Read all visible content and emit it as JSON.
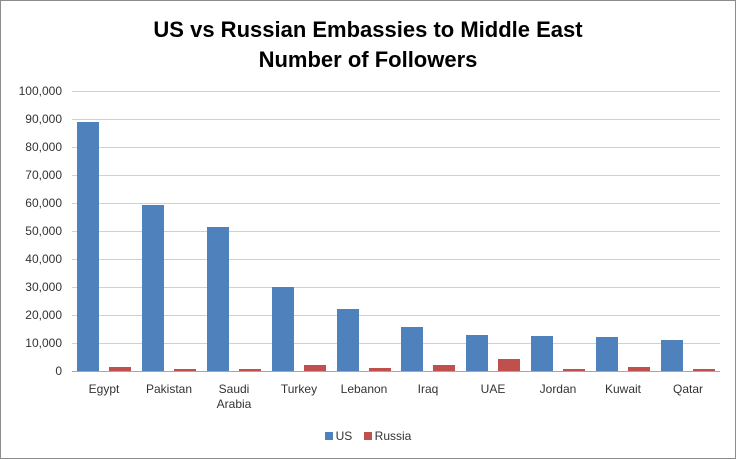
{
  "chart_data": {
    "type": "bar",
    "title": "US vs Russian Embassies to Middle East",
    "subtitle": "Number of Followers",
    "xlabel": "",
    "ylabel": "",
    "ylim": [
      0,
      100000
    ],
    "yticks": [
      "0",
      "10,000",
      "20,000",
      "30,000",
      "40,000",
      "50,000",
      "60,000",
      "70,000",
      "80,000",
      "90,000",
      "100,000"
    ],
    "grid": true,
    "legend_position": "bottom",
    "categories": [
      "Egypt",
      "Pakistan",
      "Saudi Arabia",
      "Turkey",
      "Lebanon",
      "Iraq",
      "UAE",
      "Jordan",
      "Kuwait",
      "Qatar"
    ],
    "category_lines": [
      [
        "Egypt"
      ],
      [
        "Pakistan"
      ],
      [
        "Saudi",
        "Arabia"
      ],
      [
        "Turkey"
      ],
      [
        "Lebanon"
      ],
      [
        "Iraq"
      ],
      [
        "UAE"
      ],
      [
        "Jordan"
      ],
      [
        "Kuwait"
      ],
      [
        "Qatar"
      ]
    ],
    "series": [
      {
        "name": "US",
        "color": "#4f81bd",
        "values": [
          89000,
          59200,
          51300,
          30000,
          22300,
          15800,
          12700,
          12400,
          12200,
          11000
        ]
      },
      {
        "name": "Russia",
        "color": "#c0504d",
        "values": [
          1500,
          800,
          800,
          2000,
          1000,
          2000,
          4400,
          600,
          1300,
          800
        ]
      }
    ]
  },
  "legend": {
    "us_label": "US",
    "russia_label": "Russia"
  }
}
